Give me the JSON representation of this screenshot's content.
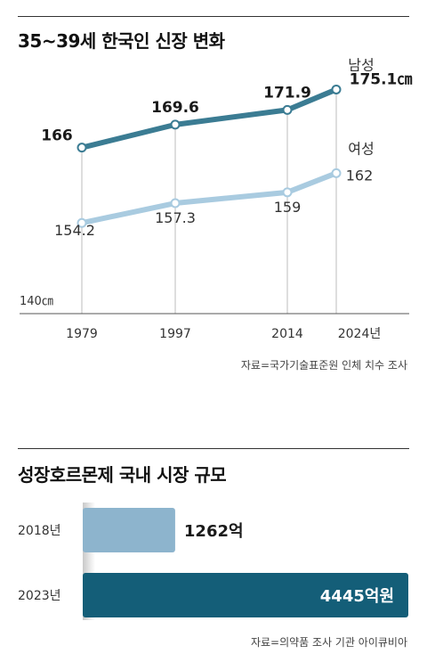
{
  "chart_data": [
    {
      "type": "line",
      "title": "35~39세 한국인 신장 변화",
      "x": [
        "1979",
        "1997",
        "2014",
        "2024년"
      ],
      "x_values": [
        1979,
        1997,
        2014,
        2024
      ],
      "series": [
        {
          "name": "남성",
          "values": [
            166,
            169.6,
            171.9,
            175.1
          ],
          "labels": [
            "166",
            "169.6",
            "171.9",
            "175.1㎝"
          ],
          "color": "#3b7c93"
        },
        {
          "name": "여성",
          "values": [
            154.2,
            157.3,
            159,
            162
          ],
          "labels": [
            "154.2",
            "157.3",
            "159",
            "162"
          ],
          "color": "#a9cbe0"
        }
      ],
      "y_base_label": "140㎝",
      "ylim": [
        140,
        177
      ],
      "grid": "vertical",
      "source": "자료=국가기술표준원 인체 치수 조사"
    },
    {
      "type": "bar",
      "orientation": "horizontal",
      "title": "성장호르몬제 국내 시장 규모",
      "categories": [
        "2018년",
        "2023년"
      ],
      "values": [
        1262,
        4445
      ],
      "value_labels": [
        "1262억",
        "4445억원"
      ],
      "colors": [
        "#8db4cd",
        "#145e78"
      ],
      "source": "자료=의약품 조사 기관 아이큐비아"
    }
  ]
}
